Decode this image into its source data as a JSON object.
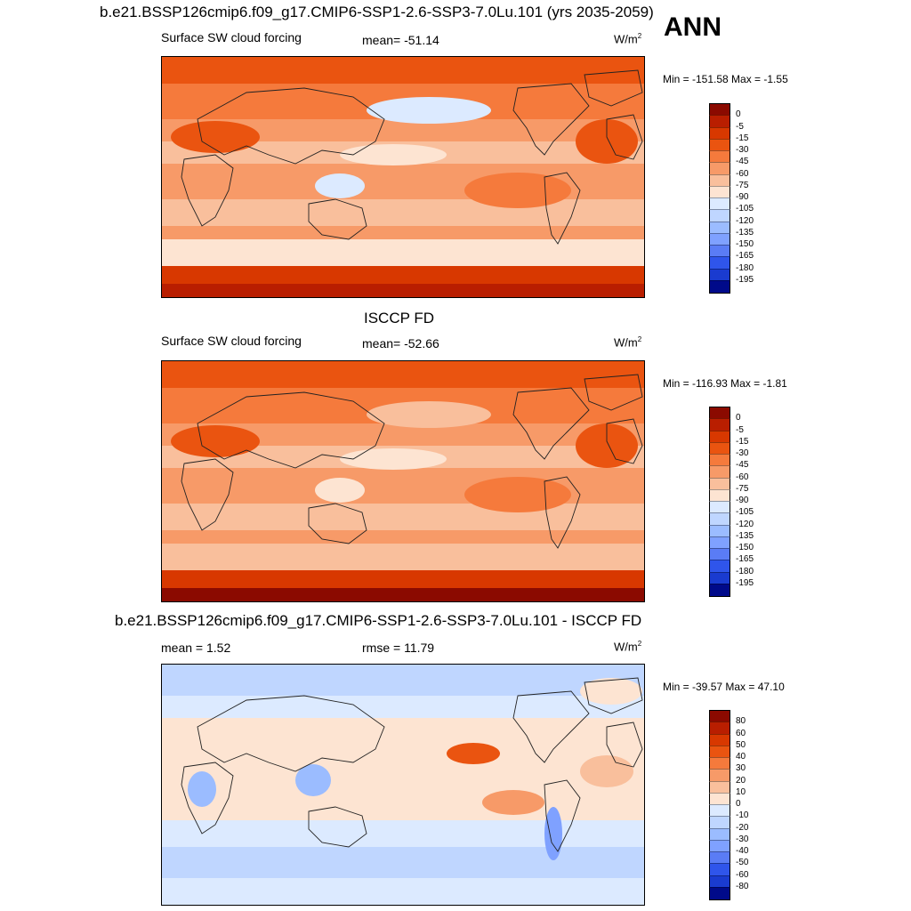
{
  "main_title": "b.e21.BSSP126cmip6.f09_g17.CMIP6-SSP1-2.6-SSP3-7.0Lu.101 (yrs 2035-2059)",
  "season": "ANN",
  "colors": {
    "warm": [
      "#8b0a00",
      "#b91e00",
      "#d83800",
      "#ea5410",
      "#f57a3c",
      "#f79a68",
      "#f9bf9c",
      "#fde4d2"
    ],
    "cool": [
      "#dceaff",
      "#bfd6ff",
      "#9bbcff",
      "#7fa1ff",
      "#5a7cf5",
      "#2f55eb",
      "#1a3bd0",
      "#0a23b0",
      "#000a8a"
    ],
    "land_outline": "#222222"
  },
  "chart_data": [
    {
      "type": "heatmap",
      "id": "model",
      "title": "",
      "left_label": "Surface SW cloud forcing",
      "center_label": "mean= -51.14",
      "units_text": "W/m",
      "units_sup": "2",
      "minmax": "Min = -151.58 Max =  -1.55",
      "stats": {
        "mean": -51.14,
        "min": -151.58,
        "max": -1.55
      },
      "colorbar_levels": [
        "0",
        "-5",
        "-15",
        "-30",
        "-45",
        "-60",
        "-75",
        "-90",
        "-105",
        "-120",
        "-135",
        "-150",
        "-165",
        "-180",
        "-195"
      ],
      "colorbar_colors": [
        "#8b0a00",
        "#b91e00",
        "#d83800",
        "#ea5410",
        "#f57a3c",
        "#f79a68",
        "#f9bf9c",
        "#fde4d2",
        "#dceaff",
        "#bfd6ff",
        "#9bbcff",
        "#7fa1ff",
        "#5a7cf5",
        "#2f55eb",
        "#1a3bd0",
        "#000a8a"
      ]
    },
    {
      "type": "heatmap",
      "id": "obs",
      "title": "ISCCP FD",
      "left_label": "Surface SW cloud forcing",
      "center_label": "mean= -52.66",
      "units_text": "W/m",
      "units_sup": "2",
      "minmax": "Min = -116.93 Max =  -1.81",
      "stats": {
        "mean": -52.66,
        "min": -116.93,
        "max": -1.81
      },
      "colorbar_levels": [
        "0",
        "-5",
        "-15",
        "-30",
        "-45",
        "-60",
        "-75",
        "-90",
        "-105",
        "-120",
        "-135",
        "-150",
        "-165",
        "-180",
        "-195"
      ],
      "colorbar_colors": [
        "#8b0a00",
        "#b91e00",
        "#d83800",
        "#ea5410",
        "#f57a3c",
        "#f79a68",
        "#f9bf9c",
        "#fde4d2",
        "#dceaff",
        "#bfd6ff",
        "#9bbcff",
        "#7fa1ff",
        "#5a7cf5",
        "#2f55eb",
        "#1a3bd0",
        "#000a8a"
      ]
    },
    {
      "type": "heatmap",
      "id": "diff",
      "title": "b.e21.BSSP126cmip6.f09_g17.CMIP6-SSP1-2.6-SSP3-7.0Lu.101 - ISCCP FD",
      "left_label": "mean =   1.52",
      "center_label": "rmse =  11.79",
      "units_text": "W/m",
      "units_sup": "2",
      "minmax": "Min = -39.57 Max =  47.10",
      "stats": {
        "mean": 1.52,
        "rmse": 11.79,
        "min": -39.57,
        "max": 47.1
      },
      "colorbar_levels": [
        "80",
        "60",
        "50",
        "40",
        "30",
        "20",
        "10",
        "0",
        "-10",
        "-20",
        "-30",
        "-40",
        "-50",
        "-60",
        "-80"
      ],
      "colorbar_colors": [
        "#8b0a00",
        "#b91e00",
        "#d83800",
        "#ea5410",
        "#f57a3c",
        "#f79a68",
        "#f9bf9c",
        "#fde4d2",
        "#dceaff",
        "#bfd6ff",
        "#9bbcff",
        "#7fa1ff",
        "#5a7cf5",
        "#2f55eb",
        "#1a3bd0",
        "#000a8a"
      ]
    }
  ]
}
